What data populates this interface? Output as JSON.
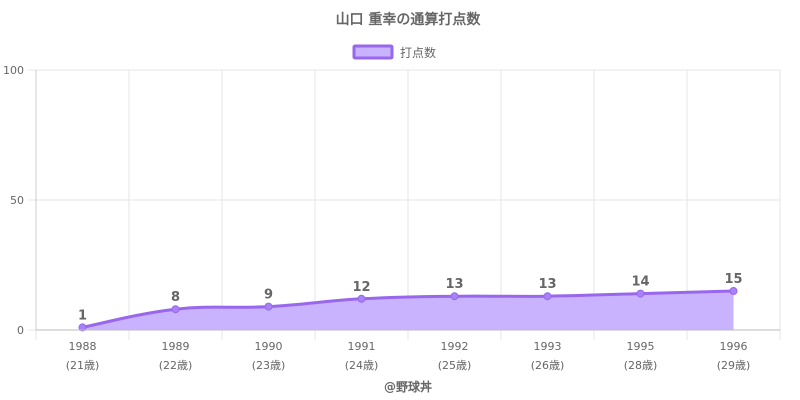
{
  "colors": {
    "line": "#9966ee",
    "fill": "#c9b3ff",
    "point": "#a782f5",
    "grid": "#e6e6e6",
    "text": "#666666"
  },
  "chart_data": {
    "type": "area",
    "title": "山口 重幸の通算打点数",
    "legend": {
      "label": "打点数",
      "placement": "top-center"
    },
    "categories": [
      "1988",
      "1989",
      "1990",
      "1991",
      "1992",
      "1993",
      "1995",
      "1996"
    ],
    "category_sublabels": [
      "(21歳)",
      "(22歳)",
      "(23歳)",
      "(24歳)",
      "(25歳)",
      "(26歳)",
      "(28歳)",
      "(29歳)"
    ],
    "series": [
      {
        "name": "打点数",
        "values": [
          1,
          8,
          9,
          12,
          13,
          13,
          14,
          15
        ]
      }
    ],
    "ylim": [
      0,
      100
    ],
    "yticks": [
      0,
      50,
      100
    ],
    "grid": true,
    "data_labels": true
  },
  "footer": {
    "text": "@野球丼"
  }
}
